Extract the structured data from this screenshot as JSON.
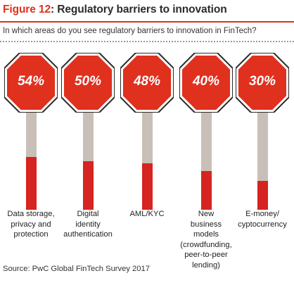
{
  "header": {
    "figure_label": "Figure 12",
    "title": ": Regulatory barriers to innovation",
    "question": "In which areas do you see regulatory barriers to innovation in FinTech?"
  },
  "colors": {
    "accent": "#e0301e",
    "sign_red": "#e0301e",
    "bar_red": "#d62420",
    "pole_grey": "#c8c0b8"
  },
  "chart_data": {
    "type": "bar",
    "title": "Figure 12: Regulatory barriers to innovation",
    "subtitle": "In which areas do you see regulatory barriers to innovation in FinTech?",
    "categories": [
      "Data storage,\nprivacy and\nprotection",
      "Digital\nidentity\nauthentication",
      "AML/KYC",
      "New\nbusiness\nmodels\n(crowdfunding,\npeer-to-peer\nlending)",
      "E-money/\ncyptocurrency"
    ],
    "values": [
      54,
      50,
      48,
      40,
      30
    ],
    "value_labels": [
      "54%",
      "50%",
      "48%",
      "40%",
      "30%"
    ],
    "unit": "%",
    "ylim": [
      0,
      100
    ],
    "grid": false,
    "legend": "none"
  },
  "footer": {
    "source": "Source: PwC Global FinTech Survey 2017"
  }
}
